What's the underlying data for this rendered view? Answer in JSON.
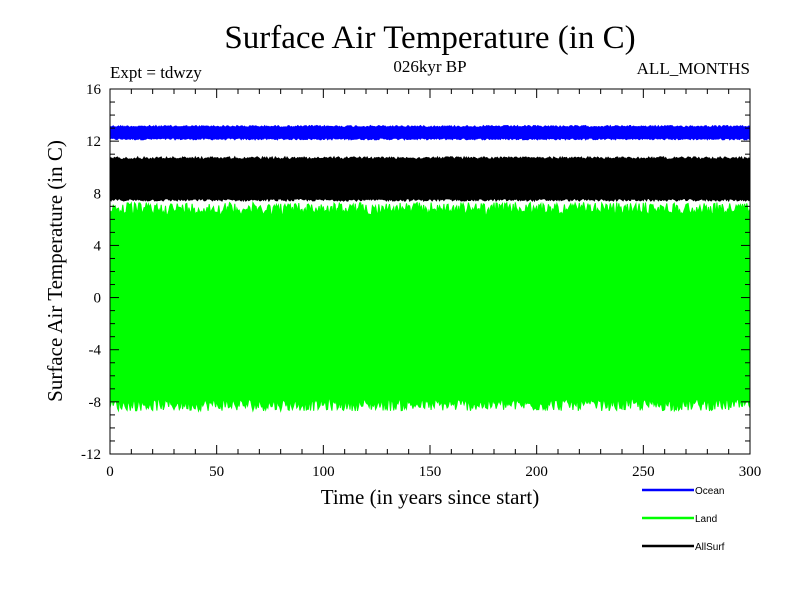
{
  "chart_data": {
    "type": "line",
    "title": "Surface Air Temperature (in C)",
    "subtitle": "026kyr BP",
    "left_note": "Expt = tdwzy",
    "right_note": "ALL_MONTHS",
    "xlabel": "Time (in years since start)",
    "ylabel": "Surface Air Temperature (in C)",
    "xlim": [
      0,
      300
    ],
    "ylim": [
      -12,
      16
    ],
    "x_ticks": [
      0,
      50,
      100,
      150,
      200,
      250,
      300
    ],
    "y_ticks": [
      -12,
      -8,
      -4,
      0,
      4,
      8,
      12,
      16
    ],
    "x_ticks_labels": [
      "0",
      "50",
      "100",
      "150",
      "200",
      "250",
      "300"
    ],
    "y_ticks_labels": [
      "-12",
      "-8",
      "-4",
      "0",
      "4",
      "8",
      "12",
      "16"
    ],
    "legend_position": "bottom-right",
    "sampling": "monthly values, seasonal cycle shown as band between min and max",
    "series": [
      {
        "name": "Ocean",
        "color": "#0000ff",
        "band_min": 12.1,
        "band_max": 13.2,
        "x_start": 0,
        "x_end": 300
      },
      {
        "name": "Land",
        "color": "#00ff00",
        "band_min": -8.7,
        "band_max": 7.3,
        "x_start": 0,
        "x_end": 300
      },
      {
        "name": "AllSurf",
        "color": "#000000",
        "band_min": 7.4,
        "band_max": 10.8,
        "x_start": 0,
        "x_end": 300
      }
    ]
  }
}
